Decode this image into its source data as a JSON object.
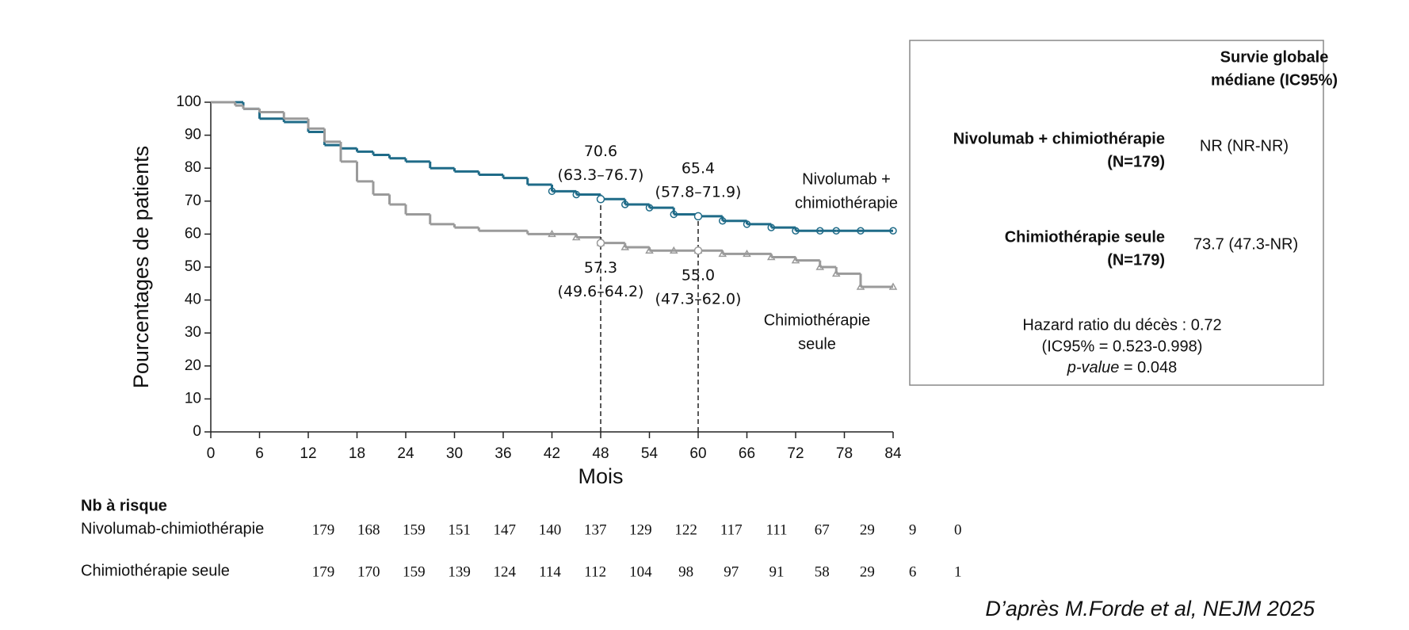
{
  "chart_data": {
    "type": "step",
    "ylabel": "Pourcentages de patients",
    "xlabel": "Mois",
    "xlim": [
      0,
      84
    ],
    "xticks": [
      0,
      6,
      12,
      18,
      24,
      30,
      36,
      42,
      48,
      54,
      60,
      66,
      72,
      78,
      84
    ],
    "ylim": [
      0,
      100
    ],
    "yticks": [
      0,
      10,
      20,
      30,
      40,
      50,
      60,
      70,
      80,
      90,
      100
    ],
    "x": [
      0,
      3,
      4,
      6,
      9,
      12,
      14,
      16,
      18,
      20,
      22,
      24,
      27,
      30,
      33,
      36,
      39,
      42,
      45,
      48,
      51,
      54,
      57,
      60,
      63,
      66,
      69,
      72,
      75,
      77,
      80,
      84
    ],
    "series": [
      {
        "name": [
          "Nivolumab +",
          "chimiothérapie"
        ],
        "color": "#1f6b88",
        "marker": "circle",
        "values": [
          100,
          100,
          98,
          95,
          94,
          91,
          87,
          86,
          85,
          84,
          83,
          82,
          80,
          79,
          78,
          77,
          75,
          73,
          72,
          70.6,
          69,
          68,
          66,
          65.4,
          64,
          63,
          62,
          61,
          61,
          61,
          61,
          61
        ]
      },
      {
        "name": [
          "Chimiothérapie",
          "seule"
        ],
        "color": "#9a9a9a",
        "marker": "triangle",
        "values": [
          100,
          99,
          98,
          97,
          95,
          92,
          88,
          82,
          76,
          72,
          69,
          66,
          63,
          62,
          61,
          61,
          60,
          60,
          59,
          57.3,
          56,
          55,
          55,
          55,
          54,
          54,
          53,
          52,
          50,
          48,
          44,
          44
        ]
      }
    ],
    "annotations": [
      {
        "x": 48,
        "series": [
          {
            "value": 70.6,
            "label": "70.6",
            "ci": "(63.3–76.7)"
          },
          {
            "value": 57.3,
            "label": "57.3",
            "ci": "(49.6–64.2)"
          }
        ]
      },
      {
        "x": 60,
        "series": [
          {
            "value": 65.4,
            "label": "65.4",
            "ci": "(57.8–71.9)"
          },
          {
            "value": 55.0,
            "label": "55.0",
            "ci": "(47.3–62.0)"
          }
        ]
      }
    ]
  },
  "info_box": {
    "header": [
      "Survie globale",
      "médiane (IC95%)"
    ],
    "rows": [
      {
        "name": [
          "Nivolumab + chimiothérapie",
          "(N=179)"
        ],
        "value": "NR (NR-NR)"
      },
      {
        "name": [
          "Chimiothérapie seule",
          "(N=179)"
        ],
        "value": "73.7 (47.3-NR)"
      }
    ],
    "footer": [
      "Hazard ratio du décès : 0.72",
      "(IC95% = 0.523-0.998)"
    ],
    "pvalue": {
      "italic": "p-value",
      "text": " = 0.048"
    }
  },
  "risk_table": {
    "title": "Nb à risque",
    "rows": [
      {
        "label": "Nivolumab-chimiothérapie",
        "values": [
          179,
          168,
          159,
          151,
          147,
          140,
          137,
          129,
          122,
          117,
          111,
          67,
          29,
          9,
          0
        ]
      },
      {
        "label": "Chimiothérapie seule",
        "values": [
          179,
          170,
          159,
          139,
          124,
          114,
          112,
          104,
          98,
          97,
          91,
          58,
          29,
          6,
          1
        ]
      }
    ]
  },
  "source": "D’après M.Forde et al, NEJM 2025"
}
